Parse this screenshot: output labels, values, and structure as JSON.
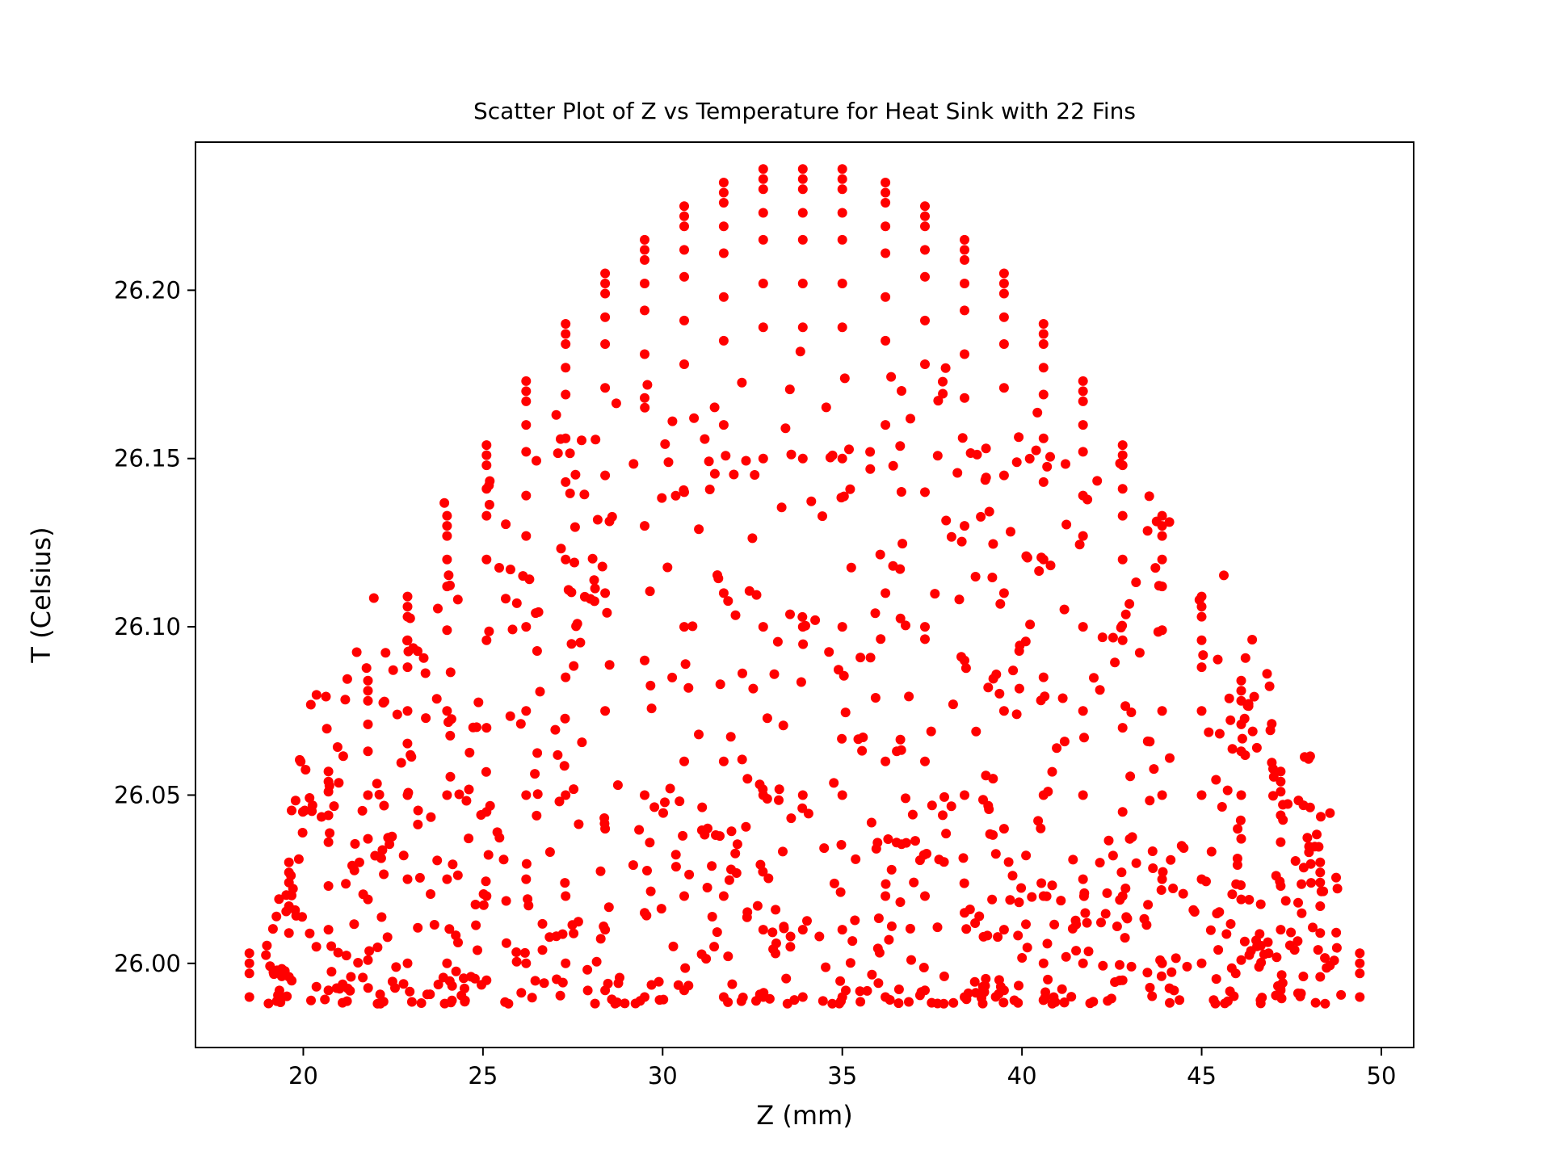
{
  "chart_data": {
    "type": "scatter",
    "title": "Scatter Plot of Z vs Temperature for Heat Sink with 22 Fins",
    "xlabel": "Z (mm)",
    "ylabel": "T (Celsius)",
    "xlim": [
      17.0,
      50.9
    ],
    "ylim": [
      25.975,
      26.244
    ],
    "x_ticks": [
      20,
      25,
      30,
      35,
      40,
      45,
      50
    ],
    "x_tick_labels": [
      "20",
      "25",
      "30",
      "35",
      "40",
      "45",
      "50"
    ],
    "y_ticks": [
      26.0,
      26.05,
      26.1,
      26.15,
      26.2
    ],
    "y_tick_labels": [
      "26.00",
      "26.05",
      "26.10",
      "26.15",
      "26.20"
    ],
    "grid": false,
    "legend": "none",
    "marker_color": "#ff0000",
    "series": [
      {
        "color": "#ff0000",
        "column_structure": {
          "x_start": 18.5,
          "x_step": 1.1,
          "x_count": 29,
          "x_center": 33.9,
          "y_min": 25.99,
          "y_max_at_center": 26.236
        },
        "points": [
          [
            18.5,
            26.003
          ],
          [
            18.5,
            26.0
          ],
          [
            18.5,
            25.997
          ],
          [
            18.5,
            25.99
          ],
          [
            49.4,
            26.003
          ],
          [
            49.4,
            26.0
          ],
          [
            49.4,
            25.997
          ],
          [
            49.4,
            25.99
          ],
          [
            19.6,
            26.03
          ],
          [
            19.6,
            26.027
          ],
          [
            19.6,
            26.024
          ],
          [
            19.6,
            26.017
          ],
          [
            19.6,
            26.009
          ],
          [
            19.6,
            25.996
          ],
          [
            48.3,
            26.03
          ],
          [
            48.3,
            26.027
          ],
          [
            48.3,
            26.024
          ],
          [
            48.3,
            26.017
          ],
          [
            48.3,
            26.009
          ],
          [
            48.3,
            25.996
          ],
          [
            20.7,
            26.057
          ],
          [
            20.7,
            26.054
          ],
          [
            20.7,
            26.051
          ],
          [
            20.7,
            26.044
          ],
          [
            20.7,
            26.036
          ],
          [
            20.7,
            26.023
          ],
          [
            20.7,
            26.01
          ],
          [
            20.7,
            25.992
          ],
          [
            47.2,
            26.057
          ],
          [
            47.2,
            26.054
          ],
          [
            47.2,
            26.051
          ],
          [
            47.2,
            26.044
          ],
          [
            47.2,
            26.036
          ],
          [
            47.2,
            26.023
          ],
          [
            47.2,
            26.01
          ],
          [
            47.2,
            25.992
          ],
          [
            21.8,
            26.084
          ],
          [
            21.8,
            26.081
          ],
          [
            21.8,
            26.078
          ],
          [
            21.8,
            26.071
          ],
          [
            21.8,
            26.063
          ],
          [
            21.8,
            26.05
          ],
          [
            21.8,
            26.037
          ],
          [
            21.8,
            26.019
          ],
          [
            21.8,
            26.001
          ],
          [
            46.1,
            26.084
          ],
          [
            46.1,
            26.081
          ],
          [
            46.1,
            26.078
          ],
          [
            46.1,
            26.071
          ],
          [
            46.1,
            26.063
          ],
          [
            46.1,
            26.05
          ],
          [
            46.1,
            26.037
          ],
          [
            46.1,
            26.019
          ],
          [
            46.1,
            26.001
          ],
          [
            22.9,
            26.109
          ],
          [
            22.9,
            26.106
          ],
          [
            22.9,
            26.103
          ],
          [
            22.9,
            26.096
          ],
          [
            22.9,
            26.088
          ],
          [
            22.9,
            26.075
          ],
          [
            22.9,
            26.05
          ],
          [
            22.9,
            26.025
          ],
          [
            22.9,
            26.0
          ],
          [
            45.0,
            26.109
          ],
          [
            45.0,
            26.106
          ],
          [
            45.0,
            26.103
          ],
          [
            45.0,
            26.096
          ],
          [
            45.0,
            26.088
          ],
          [
            45.0,
            26.075
          ],
          [
            45.0,
            26.05
          ],
          [
            45.0,
            26.025
          ],
          [
            45.0,
            26.0
          ],
          [
            24.0,
            26.133
          ],
          [
            24.0,
            26.13
          ],
          [
            24.0,
            26.127
          ],
          [
            24.0,
            26.12
          ],
          [
            24.0,
            26.112
          ],
          [
            24.0,
            26.099
          ],
          [
            24.0,
            26.075
          ],
          [
            24.0,
            26.05
          ],
          [
            24.0,
            26.025
          ],
          [
            24.0,
            26.0
          ],
          [
            43.9,
            26.133
          ],
          [
            43.9,
            26.13
          ],
          [
            43.9,
            26.127
          ],
          [
            43.9,
            26.12
          ],
          [
            43.9,
            26.112
          ],
          [
            43.9,
            26.099
          ],
          [
            43.9,
            26.075
          ],
          [
            43.9,
            26.05
          ],
          [
            43.9,
            26.025
          ],
          [
            43.9,
            26.0
          ],
          [
            25.1,
            26.154
          ],
          [
            25.1,
            26.151
          ],
          [
            25.1,
            26.148
          ],
          [
            25.1,
            26.141
          ],
          [
            25.1,
            26.133
          ],
          [
            25.1,
            26.12
          ],
          [
            25.1,
            26.096
          ],
          [
            25.1,
            26.07
          ],
          [
            25.1,
            26.045
          ],
          [
            25.1,
            26.02
          ],
          [
            25.1,
            25.995
          ],
          [
            42.8,
            26.154
          ],
          [
            42.8,
            26.151
          ],
          [
            42.8,
            26.148
          ],
          [
            42.8,
            26.141
          ],
          [
            42.8,
            26.133
          ],
          [
            42.8,
            26.12
          ],
          [
            42.8,
            26.096
          ],
          [
            42.8,
            26.07
          ],
          [
            42.8,
            26.045
          ],
          [
            42.8,
            26.02
          ],
          [
            42.8,
            25.995
          ],
          [
            26.2,
            26.173
          ],
          [
            26.2,
            26.17
          ],
          [
            26.2,
            26.167
          ],
          [
            26.2,
            26.16
          ],
          [
            26.2,
            26.152
          ],
          [
            26.2,
            26.139
          ],
          [
            26.2,
            26.127
          ],
          [
            26.2,
            26.1
          ],
          [
            26.2,
            26.075
          ],
          [
            26.2,
            26.05
          ],
          [
            26.2,
            26.025
          ],
          [
            26.2,
            26.0
          ],
          [
            41.7,
            26.173
          ],
          [
            41.7,
            26.17
          ],
          [
            41.7,
            26.167
          ],
          [
            41.7,
            26.16
          ],
          [
            41.7,
            26.152
          ],
          [
            41.7,
            26.139
          ],
          [
            41.7,
            26.127
          ],
          [
            41.7,
            26.1
          ],
          [
            41.7,
            26.075
          ],
          [
            41.7,
            26.05
          ],
          [
            41.7,
            26.025
          ],
          [
            41.7,
            26.0
          ],
          [
            27.3,
            26.19
          ],
          [
            27.3,
            26.187
          ],
          [
            27.3,
            26.184
          ],
          [
            27.3,
            26.177
          ],
          [
            27.3,
            26.169
          ],
          [
            27.3,
            26.156
          ],
          [
            27.3,
            26.143
          ],
          [
            27.3,
            26.12
          ],
          [
            27.3,
            26.085
          ],
          [
            27.3,
            26.05
          ],
          [
            27.3,
            26.02
          ],
          [
            27.3,
            26.0
          ],
          [
            40.6,
            26.19
          ],
          [
            40.6,
            26.187
          ],
          [
            40.6,
            26.184
          ],
          [
            40.6,
            26.177
          ],
          [
            40.6,
            26.169
          ],
          [
            40.6,
            26.156
          ],
          [
            40.6,
            26.143
          ],
          [
            40.6,
            26.12
          ],
          [
            40.6,
            26.085
          ],
          [
            40.6,
            26.05
          ],
          [
            40.6,
            26.02
          ],
          [
            40.6,
            26.0
          ],
          [
            28.4,
            26.205
          ],
          [
            28.4,
            26.202
          ],
          [
            28.4,
            26.199
          ],
          [
            28.4,
            26.192
          ],
          [
            28.4,
            26.184
          ],
          [
            28.4,
            26.171
          ],
          [
            28.4,
            26.145
          ],
          [
            28.4,
            26.11
          ],
          [
            28.4,
            26.075
          ],
          [
            28.4,
            26.04
          ],
          [
            28.4,
            26.01
          ],
          [
            28.4,
            25.992
          ],
          [
            39.5,
            26.205
          ],
          [
            39.5,
            26.202
          ],
          [
            39.5,
            26.199
          ],
          [
            39.5,
            26.192
          ],
          [
            39.5,
            26.184
          ],
          [
            39.5,
            26.171
          ],
          [
            39.5,
            26.145
          ],
          [
            39.5,
            26.11
          ],
          [
            39.5,
            26.075
          ],
          [
            39.5,
            26.04
          ],
          [
            39.5,
            26.01
          ],
          [
            39.5,
            25.992
          ],
          [
            29.5,
            26.215
          ],
          [
            29.5,
            26.212
          ],
          [
            29.5,
            26.209
          ],
          [
            29.5,
            26.202
          ],
          [
            29.5,
            26.194
          ],
          [
            29.5,
            26.181
          ],
          [
            29.5,
            26.168
          ],
          [
            29.5,
            26.13
          ],
          [
            29.5,
            26.09
          ],
          [
            29.5,
            26.05
          ],
          [
            29.5,
            26.015
          ],
          [
            29.5,
            25.99
          ],
          [
            38.4,
            26.215
          ],
          [
            38.4,
            26.212
          ],
          [
            38.4,
            26.209
          ],
          [
            38.4,
            26.202
          ],
          [
            38.4,
            26.194
          ],
          [
            38.4,
            26.181
          ],
          [
            38.4,
            26.168
          ],
          [
            38.4,
            26.13
          ],
          [
            38.4,
            26.09
          ],
          [
            38.4,
            26.05
          ],
          [
            38.4,
            26.015
          ],
          [
            38.4,
            25.99
          ],
          [
            30.6,
            26.225
          ],
          [
            30.6,
            26.222
          ],
          [
            30.6,
            26.219
          ],
          [
            30.6,
            26.212
          ],
          [
            30.6,
            26.204
          ],
          [
            30.6,
            26.191
          ],
          [
            30.6,
            26.178
          ],
          [
            30.6,
            26.14
          ],
          [
            30.6,
            26.1
          ],
          [
            30.6,
            26.06
          ],
          [
            30.6,
            26.02
          ],
          [
            30.6,
            25.992
          ],
          [
            37.3,
            26.225
          ],
          [
            37.3,
            26.222
          ],
          [
            37.3,
            26.219
          ],
          [
            37.3,
            26.212
          ],
          [
            37.3,
            26.204
          ],
          [
            37.3,
            26.191
          ],
          [
            37.3,
            26.178
          ],
          [
            37.3,
            26.14
          ],
          [
            37.3,
            26.1
          ],
          [
            37.3,
            26.06
          ],
          [
            37.3,
            26.02
          ],
          [
            37.3,
            25.992
          ],
          [
            31.7,
            26.232
          ],
          [
            31.7,
            26.229
          ],
          [
            31.7,
            26.226
          ],
          [
            31.7,
            26.219
          ],
          [
            31.7,
            26.211
          ],
          [
            31.7,
            26.198
          ],
          [
            31.7,
            26.185
          ],
          [
            31.7,
            26.16
          ],
          [
            31.7,
            26.11
          ],
          [
            31.7,
            26.06
          ],
          [
            31.7,
            26.02
          ],
          [
            31.7,
            25.99
          ],
          [
            36.2,
            26.232
          ],
          [
            36.2,
            26.229
          ],
          [
            36.2,
            26.226
          ],
          [
            36.2,
            26.219
          ],
          [
            36.2,
            26.211
          ],
          [
            36.2,
            26.198
          ],
          [
            36.2,
            26.185
          ],
          [
            36.2,
            26.16
          ],
          [
            36.2,
            26.11
          ],
          [
            36.2,
            26.06
          ],
          [
            36.2,
            26.02
          ],
          [
            36.2,
            25.99
          ],
          [
            32.8,
            26.236
          ],
          [
            32.8,
            26.233
          ],
          [
            32.8,
            26.23
          ],
          [
            32.8,
            26.223
          ],
          [
            32.8,
            26.215
          ],
          [
            32.8,
            26.202
          ],
          [
            32.8,
            26.189
          ],
          [
            32.8,
            26.15
          ],
          [
            32.8,
            26.1
          ],
          [
            32.8,
            26.05
          ],
          [
            32.8,
            26.01
          ],
          [
            32.8,
            25.99
          ],
          [
            35.0,
            26.236
          ],
          [
            35.0,
            26.233
          ],
          [
            35.0,
            26.23
          ],
          [
            35.0,
            26.223
          ],
          [
            35.0,
            26.215
          ],
          [
            35.0,
            26.202
          ],
          [
            35.0,
            26.189
          ],
          [
            35.0,
            26.15
          ],
          [
            35.0,
            26.1
          ],
          [
            35.0,
            26.05
          ],
          [
            35.0,
            26.01
          ],
          [
            35.0,
            25.99
          ],
          [
            33.9,
            26.236
          ],
          [
            33.9,
            26.233
          ],
          [
            33.9,
            26.23
          ],
          [
            33.9,
            26.223
          ],
          [
            33.9,
            26.215
          ],
          [
            33.9,
            26.202
          ],
          [
            33.9,
            26.189
          ],
          [
            33.9,
            26.15
          ],
          [
            33.9,
            26.1
          ],
          [
            33.9,
            26.05
          ],
          [
            33.9,
            26.01
          ],
          [
            33.9,
            25.99
          ]
        ]
      }
    ]
  }
}
